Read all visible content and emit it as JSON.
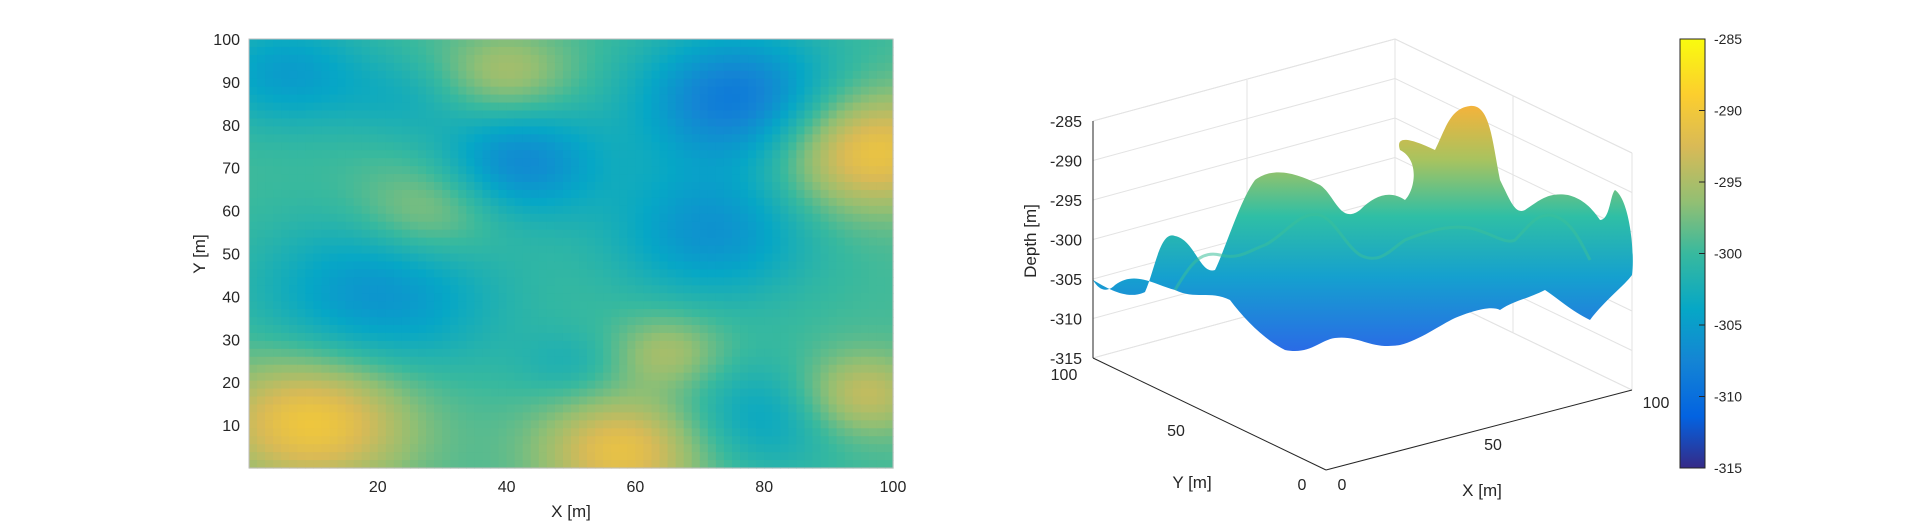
{
  "chart_data": [
    {
      "type": "heatmap",
      "title": "",
      "xlabel": "X [m]",
      "ylabel": "Y [m]",
      "xlim": [
        0,
        100
      ],
      "ylim": [
        0,
        100
      ],
      "xticks": [
        20,
        40,
        60,
        80,
        100
      ],
      "yticks": [
        10,
        20,
        30,
        40,
        50,
        60,
        70,
        80,
        90,
        100
      ],
      "grid": false,
      "value_range": [
        -315,
        -285
      ],
      "features": [
        {
          "x": 10,
          "y": 11,
          "depth": -290,
          "sigma": 11
        },
        {
          "x": 58,
          "y": 4,
          "depth": -291,
          "sigma": 9
        },
        {
          "x": 96,
          "y": 74,
          "depth": -290,
          "sigma": 10
        },
        {
          "x": 95,
          "y": 17,
          "depth": -293,
          "sigma": 7
        },
        {
          "x": 28,
          "y": 60,
          "depth": -295,
          "sigma": 8
        },
        {
          "x": 40,
          "y": 92,
          "depth": -295,
          "sigma": 7
        },
        {
          "x": 65,
          "y": 27,
          "depth": -295,
          "sigma": 6
        },
        {
          "x": 42,
          "y": 71,
          "depth": -307,
          "sigma": 9
        },
        {
          "x": 76,
          "y": 86,
          "depth": -309,
          "sigma": 11
        },
        {
          "x": 20,
          "y": 40,
          "depth": -306,
          "sigma": 13
        },
        {
          "x": 72,
          "y": 55,
          "depth": -306,
          "sigma": 11
        },
        {
          "x": 6,
          "y": 92,
          "depth": -305,
          "sigma": 9
        },
        {
          "x": 80,
          "y": 12,
          "depth": -304,
          "sigma": 9
        },
        {
          "x": 50,
          "y": 24,
          "depth": -302,
          "sigma": 6
        },
        {
          "x": 24,
          "y": 86,
          "depth": -302,
          "sigma": 7
        }
      ]
    },
    {
      "type": "surface",
      "title": "",
      "xlabel": "X [m]",
      "ylabel": "Y [m]",
      "zlabel": "Depth [m]",
      "xticks": [
        "0",
        "50",
        "100"
      ],
      "yticks": [
        "0",
        "50",
        "100"
      ],
      "zticks": [
        "-285",
        "-290",
        "-295",
        "-300",
        "-305",
        "-310",
        "-315"
      ],
      "zlim": [
        -315,
        -285
      ],
      "grid": true
    },
    {
      "type": "colorbar",
      "ticks": [
        "-285",
        "-290",
        "-295",
        "-300",
        "-305",
        "-310",
        "-315"
      ],
      "range": [
        -315,
        -285
      ],
      "colormap": "parula"
    }
  ]
}
